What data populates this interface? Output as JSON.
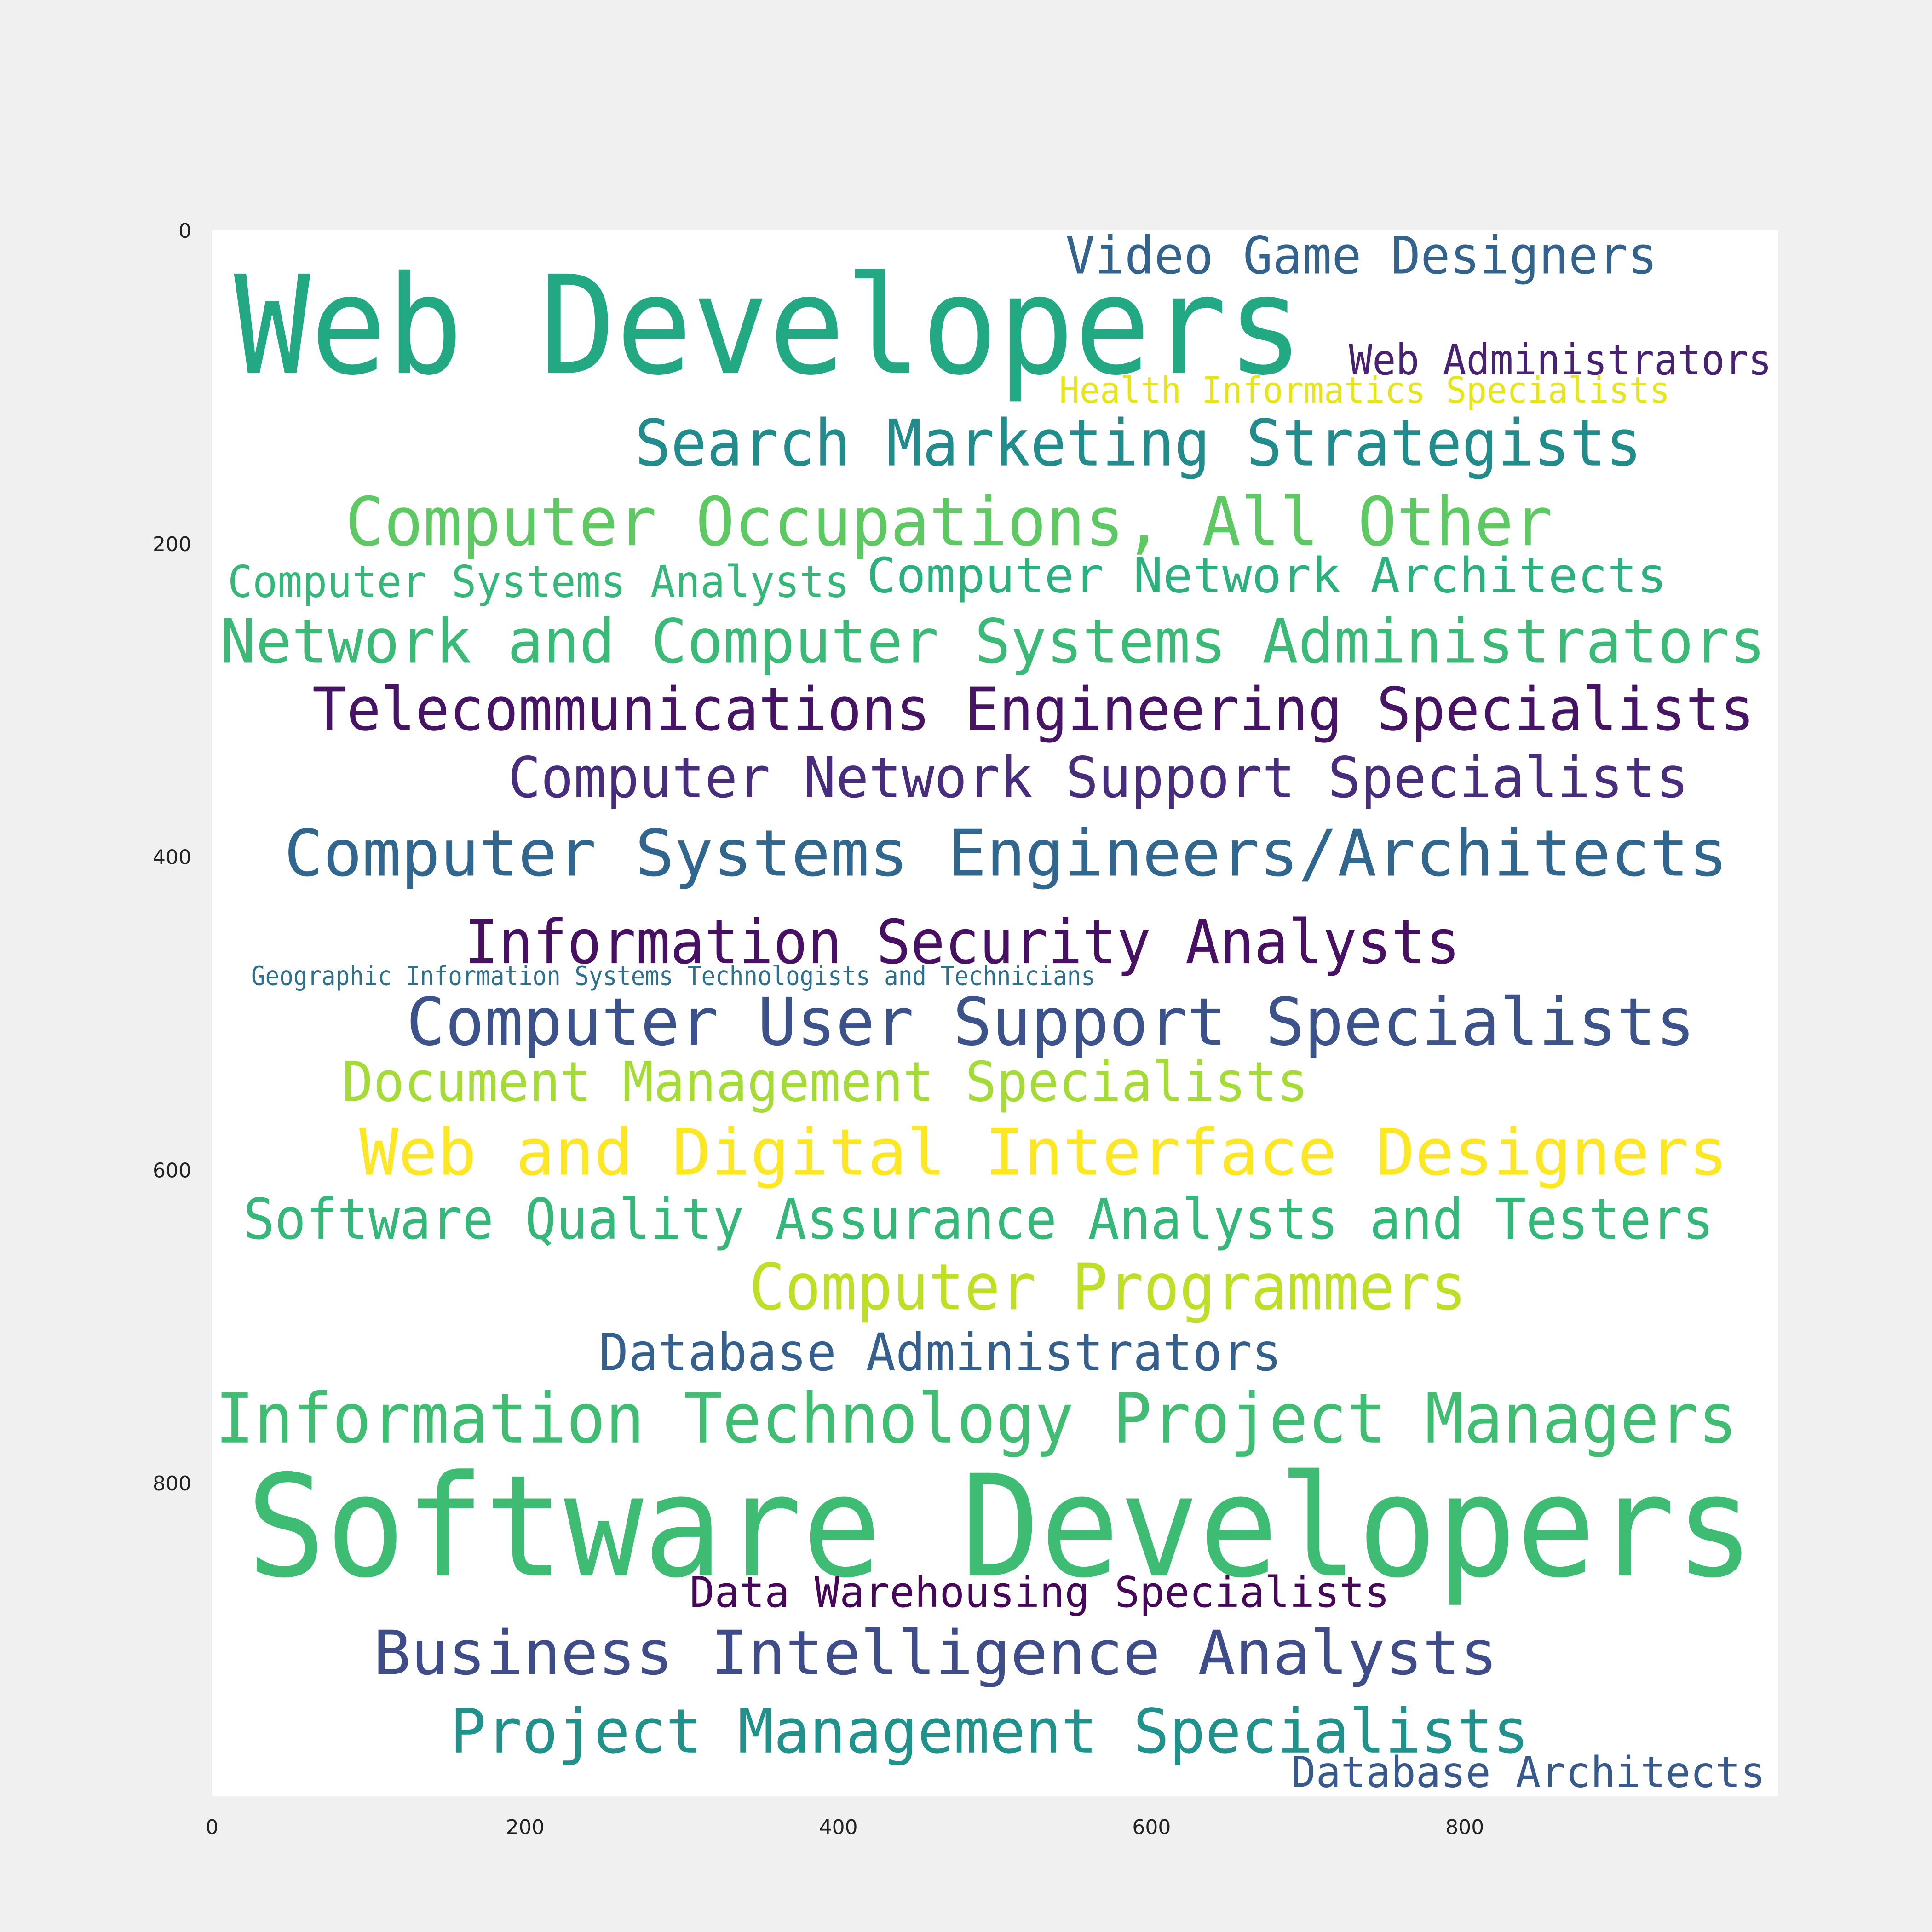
{
  "chart_data": {
    "type": "wordcloud",
    "words": [
      {
        "text": "Video Game Designers",
        "color": "#33638d"
      },
      {
        "text": "Web Developers",
        "color": "#23a884"
      },
      {
        "text": "Web Administrators",
        "color": "#482173"
      },
      {
        "text": "Health Informatics Specialists",
        "color": "#e7e419"
      },
      {
        "text": "Search Marketing Strategists",
        "color": "#228c8d"
      },
      {
        "text": "Computer Occupations, All Other",
        "color": "#5ec962"
      },
      {
        "text": "Computer Systems Analysts",
        "color": "#35b779"
      },
      {
        "text": "Computer Network Architects",
        "color": "#2cb17e"
      },
      {
        "text": "Network and Computer Systems Administrators",
        "color": "#3aba76"
      },
      {
        "text": "Telecommunications Engineering Specialists",
        "color": "#471365"
      },
      {
        "text": "Computer Network Support Specialists",
        "color": "#472d7b"
      },
      {
        "text": "Computer Systems Engineers/Architects",
        "color": "#31668e"
      },
      {
        "text": "Information Security Analysts",
        "color": "#471063"
      },
      {
        "text": "Geographic Information Systems Technologists and Technicians",
        "color": "#2d708e"
      },
      {
        "text": "Computer User Support Specialists",
        "color": "#3b528b"
      },
      {
        "text": "Document Management Specialists",
        "color": "#a5db36"
      },
      {
        "text": "Web and Digital Interface Designers",
        "color": "#fde725"
      },
      {
        "text": "Software Quality Assurance Analysts and Testers",
        "color": "#35b779"
      },
      {
        "text": "Computer Programmers",
        "color": "#bddf26"
      },
      {
        "text": "Database Administrators",
        "color": "#355f8d"
      },
      {
        "text": "Information Technology Project Managers",
        "color": "#40bd72"
      },
      {
        "text": "Software Developers",
        "color": "#3fbc73"
      },
      {
        "text": "Data Warehousing Specialists",
        "color": "#46075a"
      },
      {
        "text": "Business Intelligence Analysts",
        "color": "#3e4c8a"
      },
      {
        "text": "Project Management Specialists",
        "color": "#21918c"
      },
      {
        "text": "Database Architects",
        "color": "#38598c"
      }
    ],
    "xlim": [
      0,
      1000
    ],
    "ylim": [
      1000,
      0
    ],
    "xticks": [
      0,
      200,
      400,
      600,
      800
    ],
    "yticks": [
      0,
      200,
      400,
      600,
      800
    ]
  }
}
